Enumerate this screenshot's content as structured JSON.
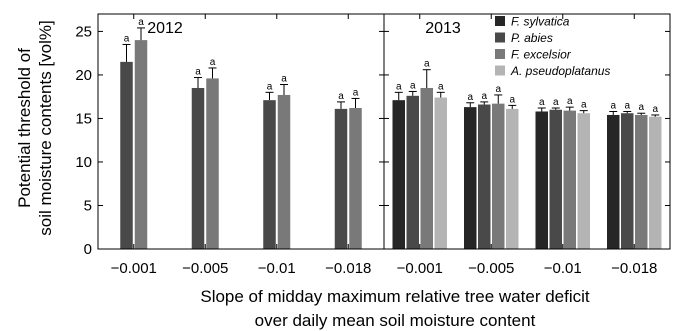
{
  "chart_data": [
    {
      "type": "bar",
      "title": "2012",
      "categories": [
        "−0.001",
        "−0.005",
        "−0.01",
        "−0.018"
      ],
      "series": [
        {
          "name": "P. abies",
          "values": [
            21.5,
            18.5,
            17.1,
            16.1
          ],
          "errors": [
            2.0,
            1.2,
            0.9,
            0.8
          ]
        },
        {
          "name": "F. excelsior",
          "values": [
            24.0,
            19.6,
            17.7,
            16.2
          ],
          "errors": [
            1.4,
            1.2,
            1.2,
            1.1
          ]
        }
      ],
      "significance_labels": [
        "a",
        "a",
        "a",
        "a",
        "a",
        "a",
        "a",
        "a"
      ],
      "ylim": [
        0,
        27
      ],
      "yticks": [
        0,
        5,
        10,
        15,
        20,
        25
      ]
    },
    {
      "type": "bar",
      "title": "2013",
      "categories": [
        "−0.001",
        "−0.005",
        "−0.01",
        "−0.018"
      ],
      "series": [
        {
          "name": "F. sylvatica",
          "values": [
            17.1,
            16.3,
            15.8,
            15.4
          ],
          "errors": [
            0.9,
            0.5,
            0.4,
            0.4
          ]
        },
        {
          "name": "P. abies",
          "values": [
            17.6,
            16.6,
            16.0,
            15.6
          ],
          "errors": [
            0.5,
            0.3,
            0.2,
            0.2
          ]
        },
        {
          "name": "F. excelsior",
          "values": [
            18.5,
            16.7,
            15.9,
            15.4
          ],
          "errors": [
            2.1,
            1.0,
            0.4,
            0.2
          ]
        },
        {
          "name": "A. pseudoplatanus",
          "values": [
            17.4,
            16.1,
            15.6,
            15.2
          ],
          "errors": [
            0.6,
            0.4,
            0.3,
            0.2
          ]
        }
      ],
      "significance_labels": [
        "a",
        "a",
        "a",
        "a",
        "a",
        "a",
        "a",
        "a",
        "a",
        "a",
        "a",
        "a",
        "a",
        "a",
        "a",
        "a"
      ],
      "ylim": [
        0,
        27
      ],
      "yticks": [
        0,
        5,
        10,
        15,
        20,
        25
      ]
    }
  ],
  "ylabel_line1": "Potential threshold of",
  "ylabel_line2": "soil moisture contents [vol%]",
  "xlabel_line1": "Slope of midday maximum relative tree water deficit",
  "xlabel_line2": "over daily mean soil moisture content",
  "colors": {
    "F. sylvatica": "#262626",
    "P. abies": "#494949",
    "F. excelsior": "#797979",
    "A. pseudoplatanus": "#b4b4b4"
  }
}
